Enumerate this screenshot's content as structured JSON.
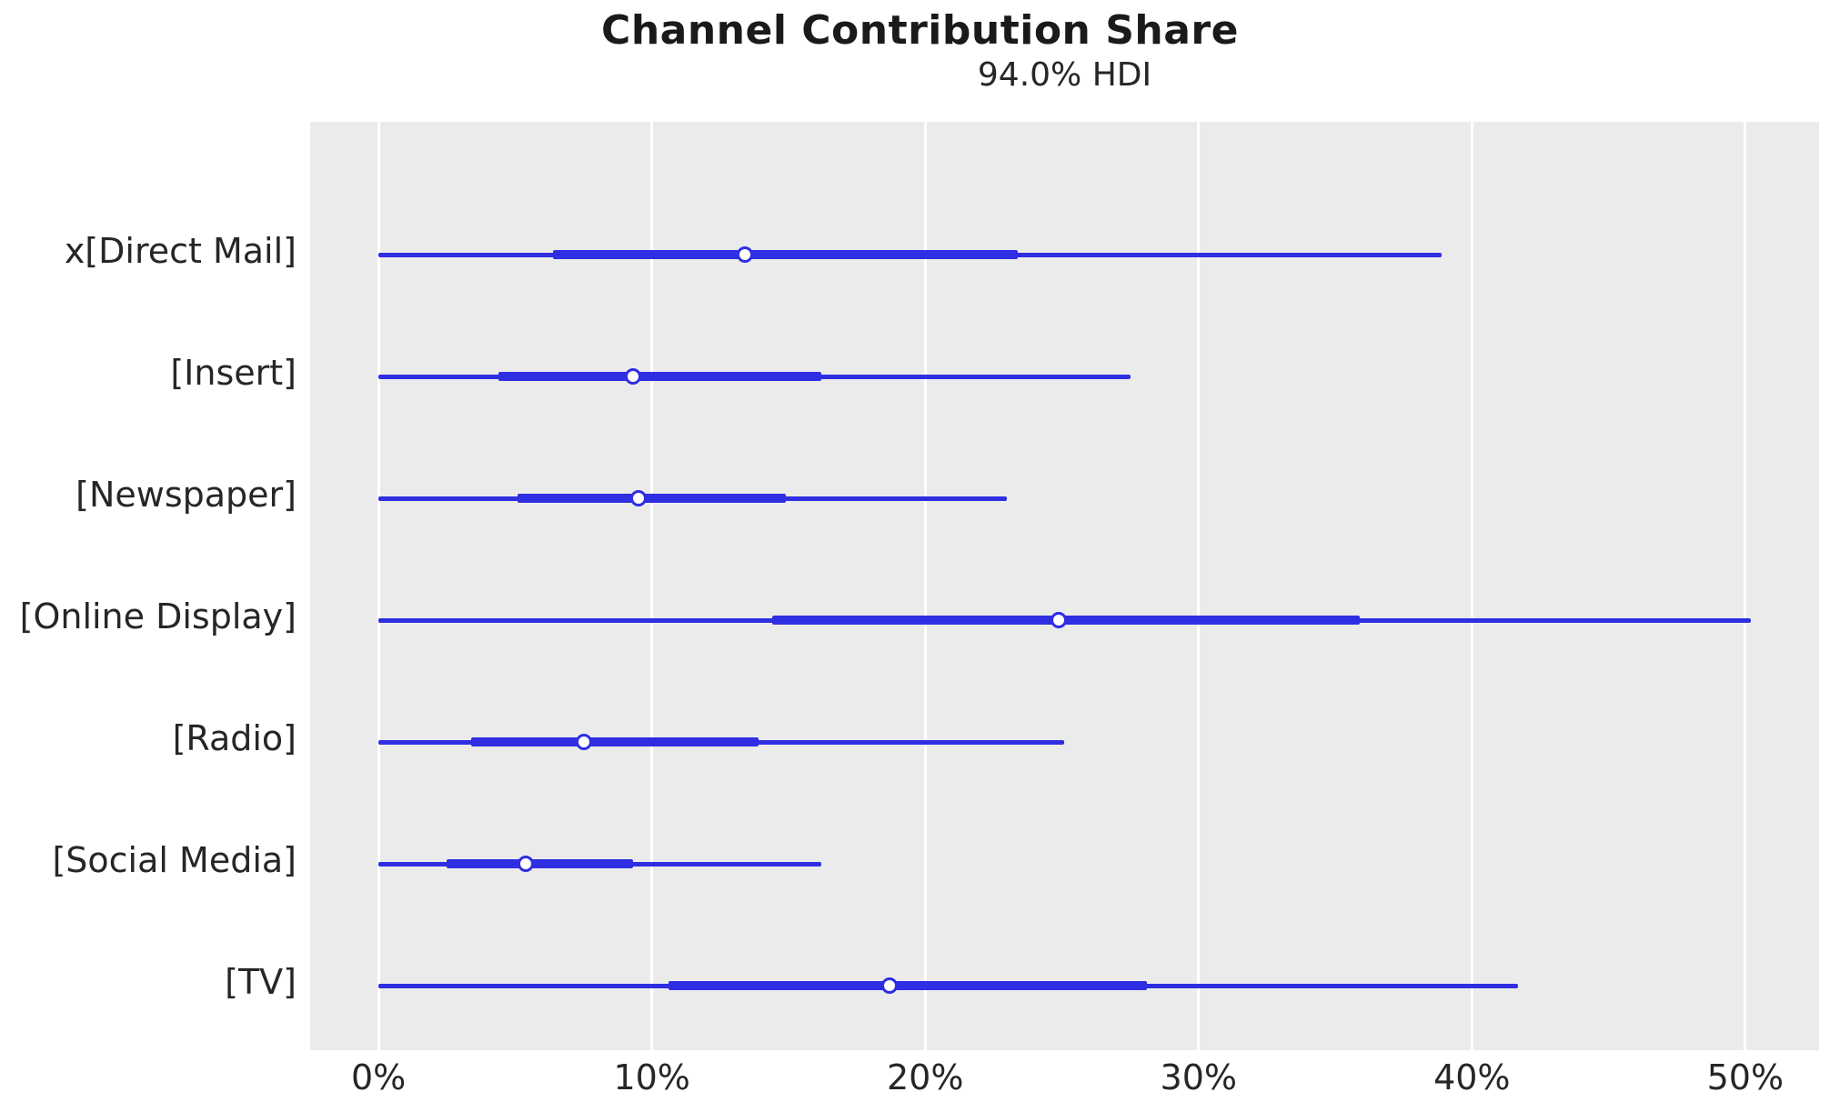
{
  "header": {
    "title": "Channel Contribution Share",
    "subtitle": "94.0% HDI"
  },
  "chart_data": {
    "type": "forest",
    "title": "Channel Contribution Share",
    "subtitle": "94.0% HDI",
    "unit": "%",
    "xlabel": "",
    "ylabel": "",
    "xlim": [
      -2.5,
      52.7
    ],
    "x_ticks": [
      {
        "value": 0,
        "label": "0%"
      },
      {
        "value": 10,
        "label": "10%"
      },
      {
        "value": 20,
        "label": "20%"
      },
      {
        "value": 30,
        "label": "30%"
      },
      {
        "value": 40,
        "label": "40%"
      },
      {
        "value": 50,
        "label": "50%"
      }
    ],
    "grid": "vertical-white-on-gray",
    "legend": "none",
    "series": [
      {
        "label": "x[Direct Mail]",
        "hdi_low": 0.0,
        "hdi_high": 38.9,
        "q_low": 6.4,
        "q_high": 23.4,
        "median": 13.4
      },
      {
        "label": "[Insert]",
        "hdi_low": 0.0,
        "hdi_high": 27.5,
        "q_low": 4.4,
        "q_high": 16.2,
        "median": 9.3
      },
      {
        "label": "[Newspaper]",
        "hdi_low": 0.0,
        "hdi_high": 23.0,
        "q_low": 5.1,
        "q_high": 14.9,
        "median": 9.5
      },
      {
        "label": "[Online Display]",
        "hdi_low": 0.0,
        "hdi_high": 50.2,
        "q_low": 14.4,
        "q_high": 35.9,
        "median": 24.9
      },
      {
        "label": "[Radio]",
        "hdi_low": 0.0,
        "hdi_high": 25.1,
        "q_low": 3.4,
        "q_high": 13.9,
        "median": 7.5
      },
      {
        "label": "[Social Media]",
        "hdi_low": 0.0,
        "hdi_high": 16.2,
        "q_low": 2.5,
        "q_high": 9.3,
        "median": 5.4
      },
      {
        "label": "[TV]",
        "hdi_low": 0.0,
        "hdi_high": 41.7,
        "q_low": 10.6,
        "q_high": 28.1,
        "median": 18.7
      }
    ],
    "colors": {
      "line": "#2F2EE2",
      "marker_fill": "#ffffff",
      "plot_bg": "#EBEBEB",
      "grid": "#FFFFFF",
      "text": "#262626",
      "title_text": "#1A1A1A",
      "figure_bg": "#FFFFFF"
    }
  }
}
